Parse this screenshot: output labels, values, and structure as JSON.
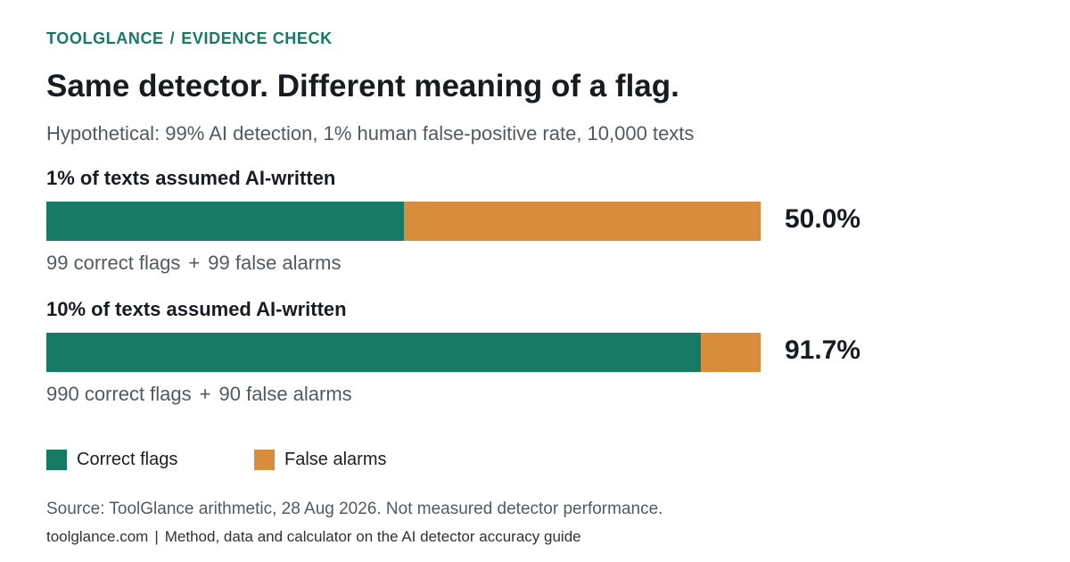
{
  "colors": {
    "accent": "#177a65",
    "correct": "#177a65",
    "false_alarm": "#d98d3a"
  },
  "kicker": {
    "brand": "TOOLGLANCE",
    "separator": "/",
    "section": "EVIDENCE CHECK"
  },
  "chart_data": {
    "type": "bar",
    "stacked": true,
    "orientation": "horizontal",
    "title": "Same detector. Different meaning of a flag.",
    "subtitle": "Hypothetical: 99% AI detection, 1% human false-positive rate, 10,000 texts",
    "categories": [
      "1% of texts assumed AI-written",
      "10% of texts assumed AI-written"
    ],
    "series": [
      {
        "name": "Correct flags",
        "values": [
          99,
          990
        ]
      },
      {
        "name": "False alarms",
        "values": [
          99,
          90
        ]
      }
    ],
    "ppv_labels": [
      "50.0%",
      "91.7%"
    ],
    "breakdowns": [
      {
        "correct": "99 correct flags",
        "plus": "+",
        "false": "99 false alarms"
      },
      {
        "correct": "990 correct flags",
        "plus": "+",
        "false": "90 false alarms"
      }
    ],
    "legend": {
      "placement": "bottom-left"
    },
    "grid": false
  },
  "source": "Source: ToolGlance arithmetic, 28 Aug 2026. Not measured detector performance.",
  "footer": {
    "site": "toolglance.com",
    "separator": "|",
    "text": "Method, data and calculator on the AI detector accuracy guide"
  }
}
